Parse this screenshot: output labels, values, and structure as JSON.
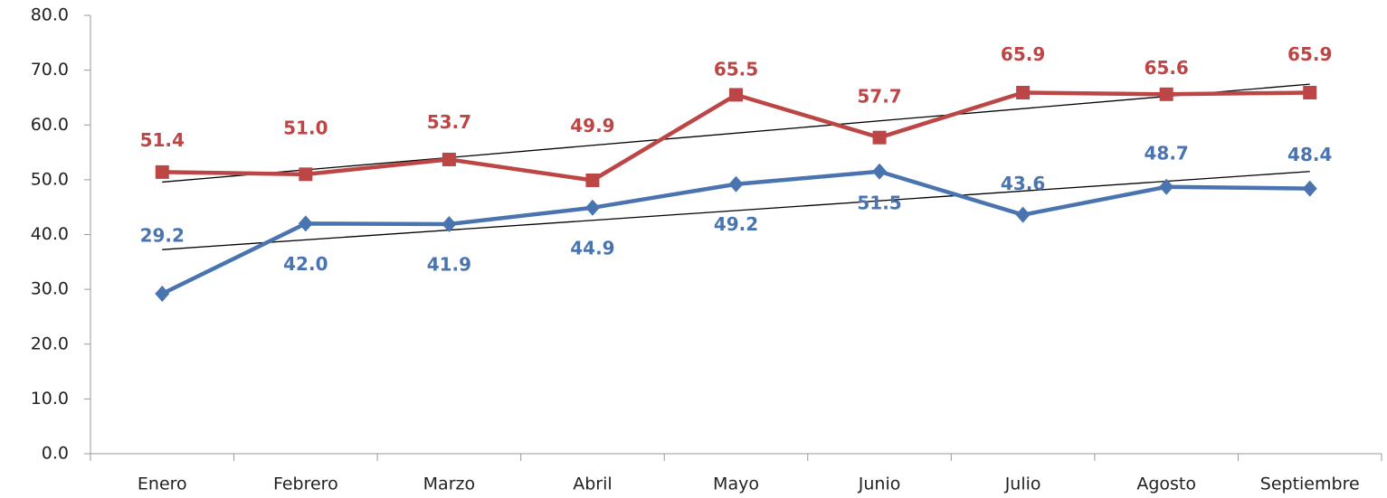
{
  "chart_data": {
    "type": "line",
    "categories": [
      "Enero",
      "Febrero",
      "Marzo",
      "Abril",
      "Mayo",
      "Junio",
      "Julio",
      "Agosto",
      "Septiembre"
    ],
    "series": [
      {
        "color": "#4a74b0",
        "marker": "diamond",
        "values": [
          29.2,
          42.0,
          41.9,
          44.9,
          49.2,
          51.5,
          43.6,
          48.7,
          48.4
        ],
        "value_labels": [
          "29.2",
          "42.0",
          "41.9",
          "44.9",
          "49.2",
          "51.5",
          "43.6",
          "48.7",
          "48.4"
        ]
      },
      {
        "color": "#bc4646",
        "marker": "square",
        "values": [
          51.4,
          51.0,
          53.7,
          49.9,
          65.5,
          57.7,
          65.9,
          65.6,
          65.9
        ],
        "value_labels": [
          "51.4",
          "51.0",
          "53.7",
          "49.9",
          "65.5",
          "57.7",
          "65.9",
          "65.6",
          "65.9"
        ]
      }
    ],
    "trendline": true,
    "ylim": [
      0,
      80
    ],
    "yticks": [
      {
        "value": 0,
        "label": "0.0"
      },
      {
        "value": 10,
        "label": "10.0"
      },
      {
        "value": 20,
        "label": "20.0"
      },
      {
        "value": 30,
        "label": "30.0"
      },
      {
        "value": 40,
        "label": "40.0"
      },
      {
        "value": 50,
        "label": "50.0"
      },
      {
        "value": 60,
        "label": "60.0"
      },
      {
        "value": 70,
        "label": "70.0"
      },
      {
        "value": 80,
        "label": "80.0"
      }
    ]
  }
}
